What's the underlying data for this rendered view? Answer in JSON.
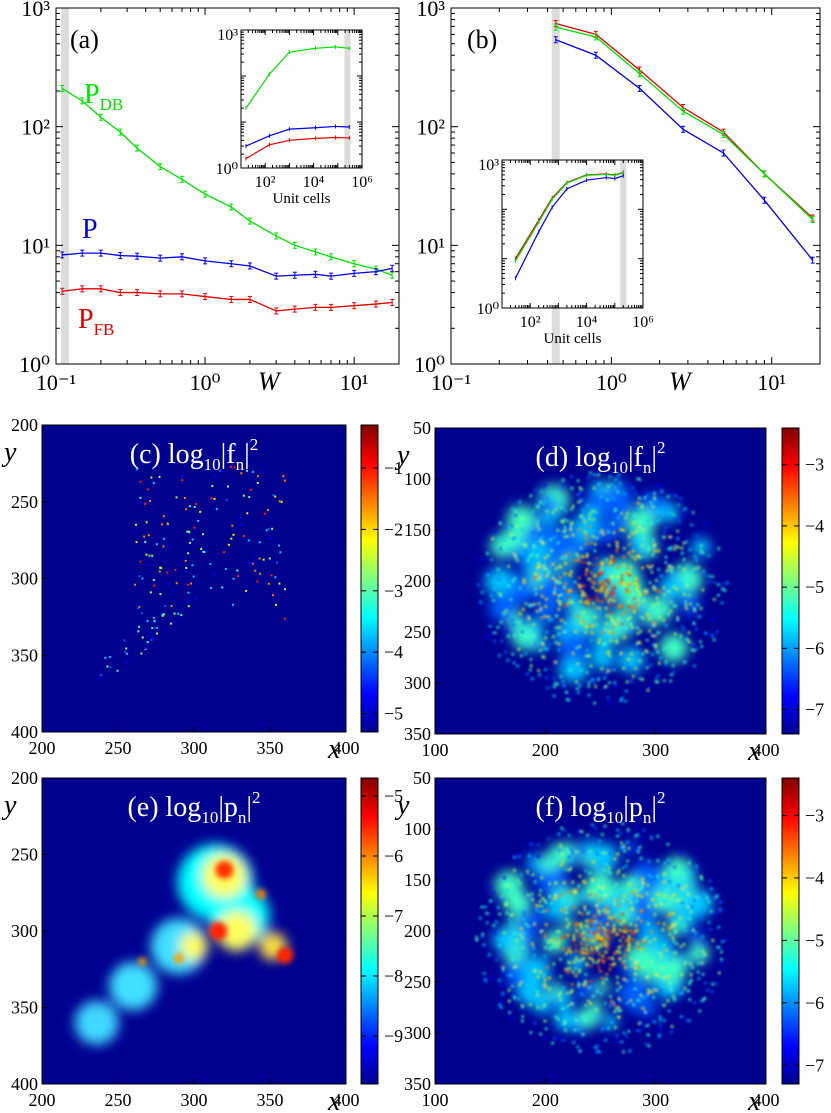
{
  "chart_data": [
    {
      "panel": "(a)",
      "type": "line",
      "xscale": "log",
      "yscale": "log",
      "xlim": [
        0.1,
        20
      ],
      "ylim": [
        1,
        1000
      ],
      "xlabel": "W",
      "x_ticks": [
        "10⁻¹",
        "10⁰",
        "10¹"
      ],
      "y_ticks": [
        "10⁰",
        "10¹",
        "10²",
        "10³"
      ],
      "highlight_x": 0.115,
      "x": [
        0.11,
        0.15,
        0.2,
        0.27,
        0.35,
        0.5,
        0.7,
        1.0,
        1.5,
        2.0,
        3.0,
        4.0,
        5.5,
        7.0,
        10,
        14,
        18
      ],
      "series": [
        {
          "name": "P_DB",
          "label_main": "P",
          "label_sub": "DB",
          "color": "#00e000",
          "values": [
            210,
            165,
            120,
            90,
            66,
            46,
            36,
            27,
            21,
            16,
            12,
            10,
            8.8,
            8.0,
            7.0,
            6.3,
            5.6
          ]
        },
        {
          "name": "P",
          "label_main": "P",
          "label_sub": "",
          "color": "#0000e0",
          "values": [
            8.3,
            8.6,
            8.6,
            8.2,
            8.1,
            7.8,
            8.0,
            7.4,
            7.0,
            6.7,
            5.5,
            5.6,
            5.7,
            5.5,
            5.8,
            6.0,
            6.4
          ]
        },
        {
          "name": "P_FB",
          "label_main": "P",
          "label_sub": "FB",
          "color": "#e00000",
          "values": [
            4.1,
            4.3,
            4.3,
            4.0,
            4.0,
            3.9,
            3.9,
            3.7,
            3.5,
            3.5,
            2.8,
            2.9,
            3.0,
            3.0,
            3.1,
            3.2,
            3.3
          ]
        }
      ],
      "inset": {
        "xlabel": "Unit cells",
        "xscale": "log",
        "yscale": "log",
        "xlim": [
          10,
          1000000
        ],
        "ylim": [
          1,
          1000
        ],
        "x_ticks": [
          "10²",
          "10⁴",
          "10⁶"
        ],
        "y_ticks": [
          "10⁰",
          "10³"
        ],
        "highlight_x": 250000,
        "x": [
          16,
          150,
          1000,
          12000,
          80000,
          300000
        ],
        "series": [
          {
            "color": "#00e000",
            "values": [
              20,
              110,
              330,
              400,
              430,
              400
            ]
          },
          {
            "color": "#0000e0",
            "values": [
              3.0,
              5.0,
              7.0,
              7.5,
              8.0,
              7.8
            ]
          },
          {
            "color": "#e00000",
            "values": [
              1.6,
              3.2,
              4.0,
              4.4,
              4.6,
              4.5
            ]
          }
        ]
      }
    },
    {
      "panel": "(b)",
      "type": "line",
      "xscale": "log",
      "yscale": "log",
      "xlim": [
        0.1,
        20
      ],
      "ylim": [
        1,
        1000
      ],
      "xlabel": "W",
      "x_ticks": [
        "10⁻¹",
        "10⁰",
        "10¹"
      ],
      "y_ticks": [
        "10⁰",
        "10¹",
        "10²",
        "10³"
      ],
      "highlight_x": 0.45,
      "x": [
        0.45,
        0.8,
        1.5,
        2.8,
        5.0,
        9.0,
        18
      ],
      "series": [
        {
          "color": "#e00000",
          "values": [
            740,
            600,
            300,
            145,
            90,
            40,
            17
          ]
        },
        {
          "color": "#00e000",
          "values": [
            690,
            570,
            280,
            135,
            86,
            40,
            16.5
          ]
        },
        {
          "color": "#0000e0",
          "values": [
            540,
            400,
            210,
            95,
            60,
            24,
            7.5
          ]
        }
      ],
      "inset": {
        "xlabel": "Unit cells",
        "xscale": "log",
        "yscale": "log",
        "xlim": [
          10,
          1000000
        ],
        "ylim": [
          1,
          1000
        ],
        "x_ticks": [
          "10²",
          "10⁴",
          "10⁶"
        ],
        "y_ticks": [
          "10⁰",
          "10³"
        ],
        "highlight_x": 200000,
        "x": [
          30,
          200,
          600,
          2000,
          10000,
          50000,
          100000,
          200000
        ],
        "series": [
          {
            "color": "#e00000",
            "values": [
              10,
              60,
              170,
              350,
              500,
              520,
              500,
              560
            ]
          },
          {
            "color": "#00e000",
            "values": [
              9,
              55,
              160,
              340,
              490,
              510,
              490,
              550
            ]
          },
          {
            "color": "#0000e0",
            "values": [
              4,
              35,
              110,
              260,
              390,
              440,
              420,
              480
            ]
          }
        ]
      }
    },
    {
      "panel": "(c)",
      "type": "heatmap",
      "title_pre": "(c) log",
      "title_sub": "10",
      "title_var": "|f",
      "title_varsub": "n",
      "title_post": "|",
      "title_sup": "2",
      "xlabel": "x",
      "ylabel": "y",
      "x_ticks": [
        "200",
        "250",
        "300",
        "350",
        "400"
      ],
      "y_ticks": [
        "200",
        "250",
        "300",
        "350",
        "400"
      ],
      "colorbar_ticks": [
        "-1",
        "-2",
        "-3",
        "-4",
        "-5"
      ],
      "colorbar_range": [
        -5.3,
        -0.3
      ]
    },
    {
      "panel": "(d)",
      "type": "heatmap",
      "title_pre": "(d) log",
      "title_sub": "10",
      "title_var": "|f",
      "title_varsub": "n",
      "title_post": "|",
      "title_sup": "2",
      "xlabel": "x",
      "ylabel": "y",
      "x_ticks": [
        "100",
        "200",
        "300",
        "400"
      ],
      "y_ticks": [
        "50",
        "100",
        "150",
        "200",
        "250",
        "300",
        "350"
      ],
      "colorbar_ticks": [
        "-3",
        "-4",
        "-5",
        "-6",
        "-7"
      ],
      "colorbar_range": [
        -7.4,
        -2.4
      ]
    },
    {
      "panel": "(e)",
      "type": "heatmap",
      "title_pre": "(e) log",
      "title_sub": "10",
      "title_var": "|p",
      "title_varsub": "n",
      "title_post": "|",
      "title_sup": "2",
      "xlabel": "x",
      "ylabel": "y",
      "x_ticks": [
        "200",
        "250",
        "300",
        "350",
        "400"
      ],
      "y_ticks": [
        "200",
        "250",
        "300",
        "350",
        "400"
      ],
      "colorbar_ticks": [
        "-5",
        "-6",
        "-7",
        "-8",
        "-9"
      ],
      "colorbar_range": [
        -9.8,
        -4.7
      ]
    },
    {
      "panel": "(f)",
      "type": "heatmap",
      "title_pre": "(f) log",
      "title_sub": "10",
      "title_var": "|p",
      "title_varsub": "n",
      "title_post": "|",
      "title_sup": "2",
      "xlabel": "x",
      "ylabel": "y",
      "x_ticks": [
        "100",
        "200",
        "300",
        "400"
      ],
      "y_ticks": [
        "50",
        "100",
        "150",
        "200",
        "250",
        "300",
        "350"
      ],
      "colorbar_ticks": [
        "-3",
        "-4",
        "-5",
        "-6",
        "-7"
      ],
      "colorbar_range": [
        -7.3,
        -2.4
      ]
    }
  ]
}
